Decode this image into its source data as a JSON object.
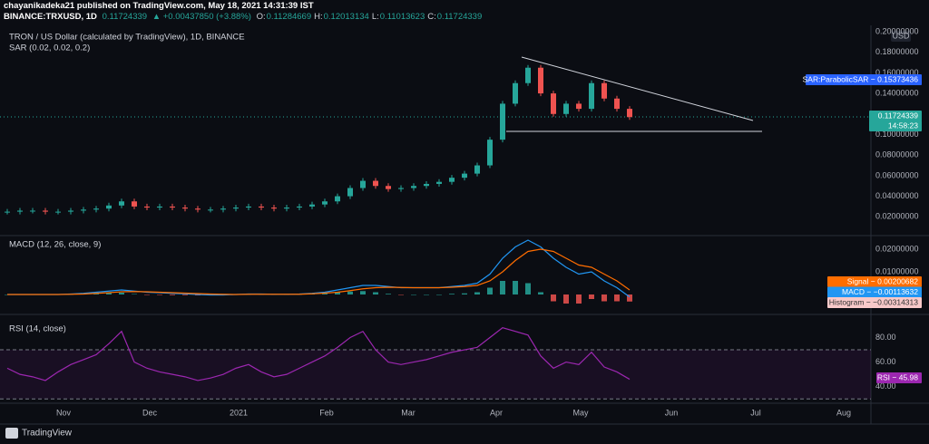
{
  "header": {
    "publisher": "chayanikadeka21 published on TradingView.com, May 18, 2021 14:31:39 IST",
    "symbol": "BINANCE:TRXUSD, 1D",
    "last": "0.11724339",
    "change": "▲ +0.00437850 (+3.88%)",
    "ohlc": [
      {
        "key": "O:",
        "value": "0.11284669"
      },
      {
        "key": "H:",
        "value": "0.12013134"
      },
      {
        "key": "L:",
        "value": "0.11013623"
      },
      {
        "key": "C:",
        "value": "0.11724339"
      }
    ]
  },
  "main_pane": {
    "title": "TRON / US Dollar (calculated by TradingView), 1D, BINANCE",
    "indicator": "SAR (0.02, 0.02, 0.2)",
    "currency": "USD",
    "ylim": [
      0.0035,
      0.2044
    ],
    "yticks": [
      {
        "value": 0.2,
        "label": "0.20000000"
      },
      {
        "value": 0.18,
        "label": "0.18000000"
      },
      {
        "value": 0.16,
        "label": "0.16000000"
      },
      {
        "value": 0.14,
        "label": "0.14000000"
      },
      {
        "value": 0.1,
        "label": "0.10000000"
      },
      {
        "value": 0.08,
        "label": "0.08000000"
      },
      {
        "value": 0.06,
        "label": "0.06000000"
      },
      {
        "value": 0.04,
        "label": "0.04000000"
      },
      {
        "value": 0.02,
        "label": "0.02000000"
      }
    ],
    "closes": [
      0.025,
      0.026,
      0.026,
      0.025,
      0.025,
      0.026,
      0.027,
      0.028,
      0.031,
      0.035,
      0.03,
      0.029,
      0.03,
      0.029,
      0.028,
      0.027,
      0.027,
      0.028,
      0.029,
      0.03,
      0.029,
      0.028,
      0.029,
      0.03,
      0.032,
      0.035,
      0.04,
      0.048,
      0.055,
      0.05,
      0.047,
      0.048,
      0.05,
      0.052,
      0.054,
      0.058,
      0.062,
      0.07,
      0.095,
      0.13,
      0.15,
      0.165,
      0.14,
      0.12,
      0.13,
      0.125,
      0.15,
      0.135,
      0.125,
      0.117
    ],
    "colors": {
      "up": "#26a69a",
      "down": "#ef5350"
    },
    "sar_tag": "SAR:ParabolicSAR − 0.15373436",
    "price_tag": "0.11724339",
    "countdown": "14:58:23"
  },
  "macd_pane": {
    "title": "MACD (12, 26, close, 9)",
    "ylim": [
      -0.008,
      0.0252
    ],
    "yticks": [
      {
        "value": 0.02,
        "label": "0.02000000"
      },
      {
        "value": 0.01,
        "label": "0.01000000"
      }
    ],
    "macd": [
      0,
      0,
      0,
      0,
      0,
      0.0002,
      0.0005,
      0.001,
      0.0015,
      0.002,
      0.0015,
      0.001,
      0.0008,
      0.0005,
      0.0003,
      0,
      -0.0002,
      -0.0002,
      0,
      0.0002,
      0.0002,
      0.0001,
      0.0001,
      0.0002,
      0.0005,
      0.001,
      0.002,
      0.003,
      0.004,
      0.004,
      0.0035,
      0.003,
      0.003,
      0.003,
      0.003,
      0.0035,
      0.004,
      0.005,
      0.009,
      0.016,
      0.021,
      0.024,
      0.021,
      0.016,
      0.012,
      0.009,
      0.01,
      0.006,
      0.003,
      -0.0011
    ],
    "signal": [
      0,
      0,
      0,
      0,
      0,
      0.0001,
      0.0002,
      0.0005,
      0.0008,
      0.0012,
      0.0013,
      0.0012,
      0.001,
      0.0008,
      0.0006,
      0.0004,
      0.0002,
      0.0001,
      0,
      0.0001,
      0.0001,
      0.0001,
      0.0001,
      0.0001,
      0.0003,
      0.0006,
      0.001,
      0.0017,
      0.0025,
      0.003,
      0.0032,
      0.0031,
      0.003,
      0.003,
      0.003,
      0.0032,
      0.0035,
      0.004,
      0.006,
      0.01,
      0.015,
      0.019,
      0.02,
      0.019,
      0.016,
      0.013,
      0.012,
      0.009,
      0.006,
      0.002
    ],
    "histogram": [
      0,
      0,
      0,
      0,
      0,
      0.0001,
      0.0003,
      0.0005,
      0.0007,
      0.0008,
      0.0002,
      -0.0002,
      -0.0002,
      -0.0003,
      -0.0003,
      -0.0004,
      -0.0004,
      -0.0003,
      0,
      0.0001,
      0.0001,
      0,
      0,
      0.0001,
      0.0002,
      0.0004,
      0.001,
      0.0013,
      0.0015,
      0.001,
      0.0003,
      -0.0001,
      0,
      0,
      0,
      0.0003,
      0.0005,
      0.001,
      0.003,
      0.006,
      0.006,
      0.005,
      0.001,
      -0.003,
      -0.004,
      -0.004,
      -0.002,
      -0.003,
      -0.003,
      -0.0031
    ],
    "colors": {
      "macd": "#2196f3",
      "signal": "#ff6d00",
      "hist_up": "#26a69a",
      "hist_down": "#ef5350"
    },
    "tags": [
      {
        "text": "Signal − 0.00200682",
        "color": "#ff6d00"
      },
      {
        "text": "MACD − −0.00113632",
        "color": "#2196f3"
      },
      {
        "text": "Histogram − −0.00314313",
        "color": "#f8c9c9"
      }
    ]
  },
  "rsi_pane": {
    "title": "RSI (14, close)",
    "ylim": [
      28.7,
      96.6
    ],
    "yticks": [
      {
        "value": 80,
        "label": "80.00"
      },
      {
        "value": 60,
        "label": "60.00"
      },
      {
        "value": 40,
        "label": "40.00"
      }
    ],
    "bands": [
      70,
      30
    ],
    "color": "#9c27b0",
    "values": [
      55,
      50,
      48,
      45,
      52,
      58,
      62,
      66,
      75,
      85,
      60,
      55,
      52,
      50,
      48,
      45,
      47,
      50,
      55,
      58,
      52,
      48,
      50,
      55,
      60,
      65,
      72,
      80,
      85,
      70,
      60,
      58,
      60,
      62,
      65,
      68,
      70,
      72,
      80,
      88,
      85,
      82,
      65,
      55,
      60,
      58,
      68,
      56,
      52,
      46
    ],
    "tag": "RSI − 45.98"
  },
  "time_axis": [
    "Nov",
    "Dec",
    "2021",
    "Feb",
    "Mar",
    "Apr",
    "May",
    "Jun",
    "Jul",
    "Aug"
  ],
  "footer": "TradingView"
}
